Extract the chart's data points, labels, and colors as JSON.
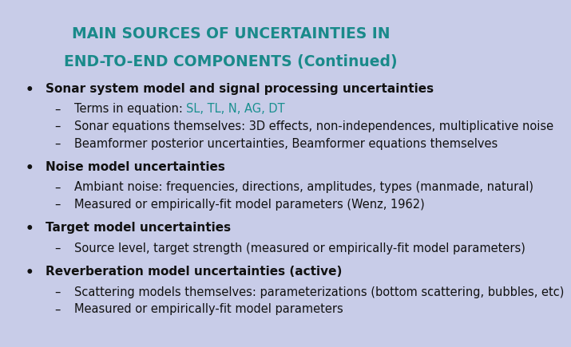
{
  "background_color": "#c8cce8",
  "title_line1": "MAIN SOURCES OF UNCERTAINTIES IN",
  "title_line2": "END-TO-END COMPONENTS (Continued)",
  "title_color": "#1a8a8a",
  "title_fontsize": 13.5,
  "body_fontsize": 10.5,
  "header_fontsize": 11,
  "bullet_color": "#111111",
  "sub_color": "#111111",
  "highlight_color": "#1a9090",
  "bullets": [
    {
      "header": "Sonar system model and signal processing uncertainties",
      "subs": [
        {
          "pre": "Terms in equation: ",
          "highlight": "SL, TL, N, AG, DT",
          "post": ""
        },
        {
          "pre": "Sonar equations themselves: 3D effects, non-independences, multiplicative noise",
          "highlight": "",
          "post": ""
        },
        {
          "pre": "Beamformer posterior uncertainties, Beamformer equations themselves",
          "highlight": "",
          "post": ""
        }
      ]
    },
    {
      "header": "Noise model uncertainties",
      "subs": [
        {
          "pre": "Ambiant noise: frequencies, directions, amplitudes, types (manmade, natural)",
          "highlight": "",
          "post": ""
        },
        {
          "pre": "Measured or empirically-fit model parameters (Wenz, 1962)",
          "highlight": "",
          "post": ""
        }
      ]
    },
    {
      "header": "Target model uncertainties",
      "subs": [
        {
          "pre": "Source level, target strength (measured or empirically-fit model parameters)",
          "highlight": "",
          "post": ""
        }
      ]
    },
    {
      "header": "Reverberation model uncertainties (active)",
      "subs": [
        {
          "pre": "Scattering models themselves: parameterizations (bottom scattering, bubbles, etc)",
          "highlight": "",
          "post": ""
        },
        {
          "pre": "Measured or empirically-fit model parameters",
          "highlight": "",
          "post": ""
        }
      ]
    }
  ]
}
